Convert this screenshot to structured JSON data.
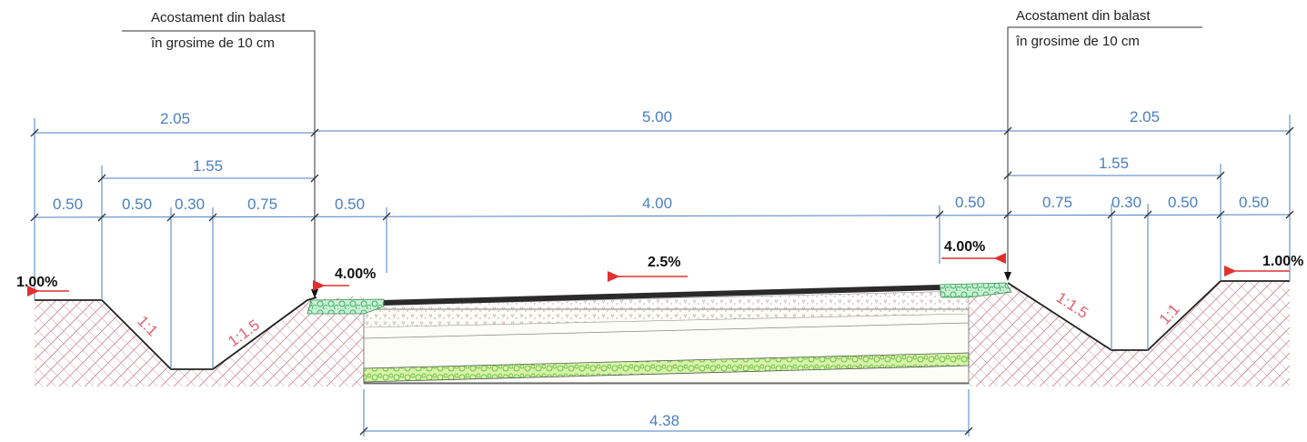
{
  "annotations": {
    "left_note_line1": "Acostament din balast",
    "left_note_line2": "în grosime de 10 cm",
    "right_note_line1": "Acostament din balast",
    "right_note_line2": "în grosime de 10 cm"
  },
  "dimensions": {
    "left_total": "2.05",
    "center_total": "5.00",
    "right_total": "2.05",
    "left_ditch": "1.55",
    "right_ditch": "1.55",
    "left_seg1": "0.50",
    "left_seg2": "0.50",
    "left_seg3": "0.30",
    "left_seg4": "0.75",
    "left_shoulder": "0.50",
    "carriageway": "4.00",
    "right_shoulder": "0.50",
    "right_seg4": "0.75",
    "right_seg3": "0.30",
    "right_seg2": "0.50",
    "right_seg1": "0.50",
    "base_width": "4.38"
  },
  "slopes": {
    "left_edge": "1.00%",
    "left_shoulder": "4.00%",
    "road": "2.5%",
    "right_shoulder": "4.00%",
    "right_edge": "1.00%",
    "left_ditch_inner": "1:1",
    "left_ditch_outer": "1:1.5",
    "right_ditch_outer": "1:1.5",
    "right_ditch_inner": "1:1"
  },
  "colors": {
    "dimension": "#4a7fc1",
    "slope_arrow": "#e03030",
    "ground_hatch": "#c98a94",
    "ballast": "#8fe0a8",
    "asphalt": "#2a2a2a"
  }
}
